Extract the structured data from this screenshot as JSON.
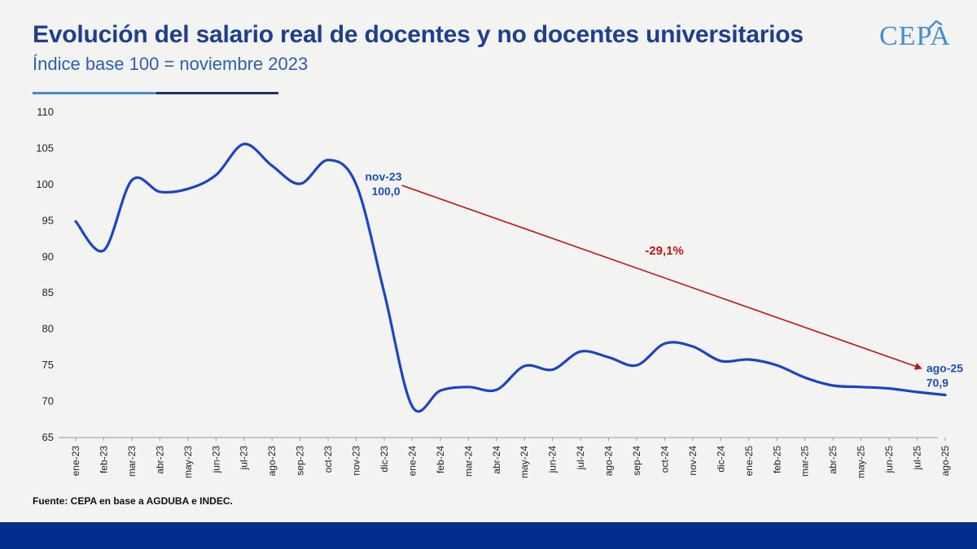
{
  "header": {
    "title": "Evolución del salario real de docentes y no docentes universitarios",
    "subtitle": "Índice base 100 = noviembre 2023",
    "logo_text": "CEPA"
  },
  "colors": {
    "title": "#1e3f8f",
    "subtitle": "#2e5fae",
    "series_line": "#1b45c4",
    "trend_arrow": "#b81616",
    "footer_bar": "#022f8e",
    "accent_light": "#4a88d6",
    "accent_dark": "#1a2f6e"
  },
  "chart_data": {
    "type": "line",
    "title": "Evolución del salario real de docentes y no docentes universitarios",
    "subtitle": "Índice base 100 = noviembre 2023",
    "categories": [
      "ene-23",
      "feb-23",
      "mar-23",
      "abr-23",
      "may-23",
      "jun-23",
      "jul-23",
      "ago-23",
      "sep-23",
      "oct-23",
      "nov-23",
      "dic-23",
      "ene-24",
      "feb-24",
      "mar-24",
      "abr-24",
      "may-24",
      "jun-24",
      "jul-24",
      "ago-24",
      "sep-24",
      "oct-24",
      "nov-24",
      "dic-24",
      "ene-25",
      "feb-25",
      "mar-25",
      "abr-25",
      "may-25",
      "jun-25",
      "jul-25",
      "ago-25"
    ],
    "series": [
      {
        "values": [
          94.9,
          90.9,
          100.6,
          99.0,
          99.4,
          101.3,
          105.6,
          102.6,
          100.1,
          103.4,
          100.0,
          85.0,
          69.3,
          71.5,
          72.0,
          71.6,
          74.9,
          74.4,
          76.9,
          76.1,
          75.0,
          78.0,
          77.6,
          75.6,
          75.8,
          75.0,
          73.3,
          72.2,
          72.0,
          71.8,
          71.3,
          70.9
        ]
      }
    ],
    "ylim": [
      65,
      110
    ],
    "yticks": [
      "110",
      "105",
      "100",
      "95",
      "90",
      "85",
      "80",
      "75",
      "70",
      "65"
    ],
    "grid": false,
    "annotations": {
      "start_label": "nov-23",
      "start_value": "100,0",
      "end_label": "ago-25",
      "end_value": "70,9",
      "change": "-29,1%"
    }
  },
  "footer": {
    "source": "Fuente: CEPA en base a AGDUBA e INDEC."
  }
}
